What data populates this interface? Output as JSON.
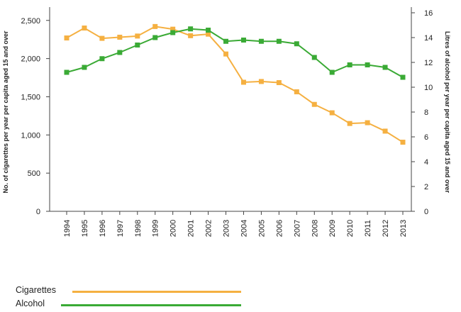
{
  "chart_data": {
    "type": "line",
    "title": "",
    "x": [
      1994,
      1995,
      1996,
      1997,
      1998,
      1999,
      2000,
      2001,
      2002,
      2003,
      2004,
      2005,
      2006,
      2007,
      2008,
      2009,
      2010,
      2011,
      2012,
      2013
    ],
    "x_labels": [
      "1994",
      "1995",
      "1996",
      "1997",
      "1998",
      "1999",
      "2000",
      "2001",
      "2002",
      "2003",
      "2004",
      "2005",
      "2006",
      "2007",
      "2008",
      "2009",
      "2010",
      "2011",
      "2012",
      "2013"
    ],
    "series": [
      {
        "name": "Cigarettes",
        "axis": "left",
        "color": "#f5b041",
        "values": [
          2270,
          2400,
          2265,
          2280,
          2295,
          2420,
          2385,
          2300,
          2320,
          2060,
          1690,
          1700,
          1685,
          1565,
          1400,
          1290,
          1150,
          1160,
          1050,
          905
        ]
      },
      {
        "name": "Alcohol",
        "axis": "right",
        "color": "#3aaa35",
        "values": [
          11.2,
          11.6,
          12.3,
          12.8,
          13.4,
          14.0,
          14.4,
          14.7,
          14.6,
          13.7,
          13.8,
          13.7,
          13.7,
          13.5,
          12.4,
          11.2,
          11.8,
          11.8,
          11.6,
          10.8
        ]
      }
    ],
    "y_left": {
      "label": "No. of cigarettes per year per capita aged 15 and over",
      "ticks": [
        0,
        500,
        1000,
        1500,
        2000,
        2500
      ],
      "tick_labels": [
        "0",
        "500",
        "1,000",
        "1,500",
        "2,000",
        "2,500"
      ],
      "ylim": [
        0,
        2600
      ]
    },
    "y_right": {
      "label": "Litres of alcohol per year per capita aged 15 and over",
      "ticks": [
        0,
        2,
        4,
        6,
        8,
        10,
        12,
        14,
        16
      ],
      "tick_labels": [
        "0",
        "2",
        "4",
        "6",
        "8",
        "10",
        "12",
        "14",
        "16"
      ],
      "ylim": [
        0,
        16
      ]
    },
    "grid": false,
    "legend": {
      "position": "bottom-left",
      "entries": [
        "Cigarettes",
        "Alcohol"
      ]
    }
  }
}
